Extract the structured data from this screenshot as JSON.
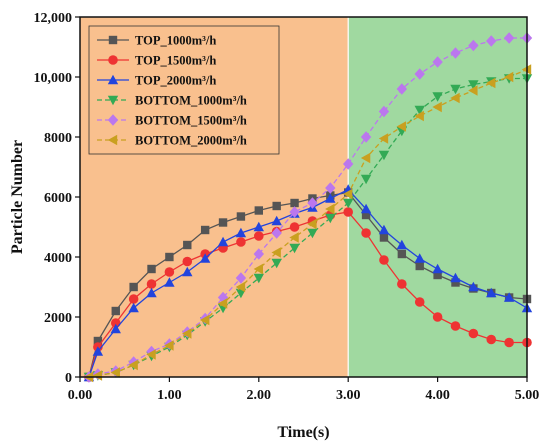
{
  "chart_data": {
    "type": "line",
    "xlabel": "Time(s)",
    "ylabel": "Particle Number",
    "xlim": [
      0,
      5
    ],
    "ylim": [
      0,
      12000
    ],
    "x_ticks": [
      "0.00",
      "1.00",
      "2.00",
      "3.00",
      "4.00",
      "5.00"
    ],
    "y_ticks": [
      "0",
      "2000",
      "4000",
      "6000",
      "8000",
      "10,000",
      "12,000"
    ],
    "regions": [
      {
        "from": 0,
        "to": 3,
        "color": "#F9C08E"
      },
      {
        "from": 3,
        "to": 5,
        "color": "#A0D9A0"
      }
    ],
    "legend_position": "top-left",
    "x": [
      0.1,
      0.2,
      0.4,
      0.6,
      0.8,
      1.0,
      1.2,
      1.4,
      1.6,
      1.8,
      2.0,
      2.2,
      2.4,
      2.6,
      2.8,
      3.0,
      3.2,
      3.4,
      3.6,
      3.8,
      4.0,
      4.2,
      4.4,
      4.6,
      4.8,
      5.0
    ],
    "series": [
      {
        "name": "TOP_1000m³/h",
        "color": "#555555",
        "marker": "square",
        "dash": "solid",
        "values": [
          0,
          1200,
          2200,
          3000,
          3600,
          4000,
          4400,
          4900,
          5150,
          5350,
          5550,
          5700,
          5800,
          5950,
          6050,
          6150,
          5400,
          4650,
          4100,
          3700,
          3400,
          3150,
          2950,
          2800,
          2650,
          2600
        ]
      },
      {
        "name": "TOP_1500m³/h",
        "color": "#EE3333",
        "marker": "circle",
        "dash": "solid",
        "values": [
          0,
          1000,
          1800,
          2600,
          3100,
          3500,
          3850,
          4100,
          4300,
          4500,
          4700,
          4850,
          5000,
          5200,
          5400,
          5500,
          4800,
          3900,
          3100,
          2500,
          2000,
          1700,
          1450,
          1250,
          1150,
          1150
        ]
      },
      {
        "name": "TOP_2000m³/h",
        "color": "#2244DD",
        "marker": "triangle-up",
        "dash": "solid",
        "values": [
          0,
          850,
          1600,
          2300,
          2800,
          3150,
          3500,
          3950,
          4500,
          4800,
          5000,
          5200,
          5450,
          5650,
          5950,
          6250,
          5600,
          4900,
          4400,
          3950,
          3600,
          3300,
          3000,
          2800,
          2650,
          2300
        ]
      },
      {
        "name": "BOTTOM_1000m³/h",
        "color": "#33AA55",
        "marker": "triangle-down",
        "dash": "dashed",
        "values": [
          0,
          50,
          150,
          400,
          700,
          1000,
          1400,
          1850,
          2300,
          2800,
          3300,
          3800,
          4300,
          4800,
          5300,
          5800,
          6600,
          7400,
          8200,
          8900,
          9350,
          9600,
          9750,
          9850,
          9950,
          9950
        ]
      },
      {
        "name": "BOTTOM_1500m³/h",
        "color": "#BB77EE",
        "marker": "diamond",
        "dash": "dashed",
        "values": [
          0,
          100,
          200,
          500,
          850,
          1100,
          1500,
          1950,
          2650,
          3300,
          4100,
          4800,
          5500,
          5800,
          6300,
          7100,
          8000,
          8850,
          9600,
          10100,
          10500,
          10800,
          11050,
          11200,
          11300,
          11300
        ]
      },
      {
        "name": "BOTTOM_2000m³/h",
        "color": "#C9A020",
        "marker": "triangle-left",
        "dash": "dashed",
        "values": [
          0,
          50,
          150,
          400,
          750,
          1050,
          1450,
          1900,
          2450,
          3000,
          3600,
          4150,
          4650,
          5100,
          5600,
          6100,
          7300,
          7950,
          8350,
          8700,
          9000,
          9300,
          9550,
          9800,
          10000,
          10250
        ]
      }
    ]
  }
}
